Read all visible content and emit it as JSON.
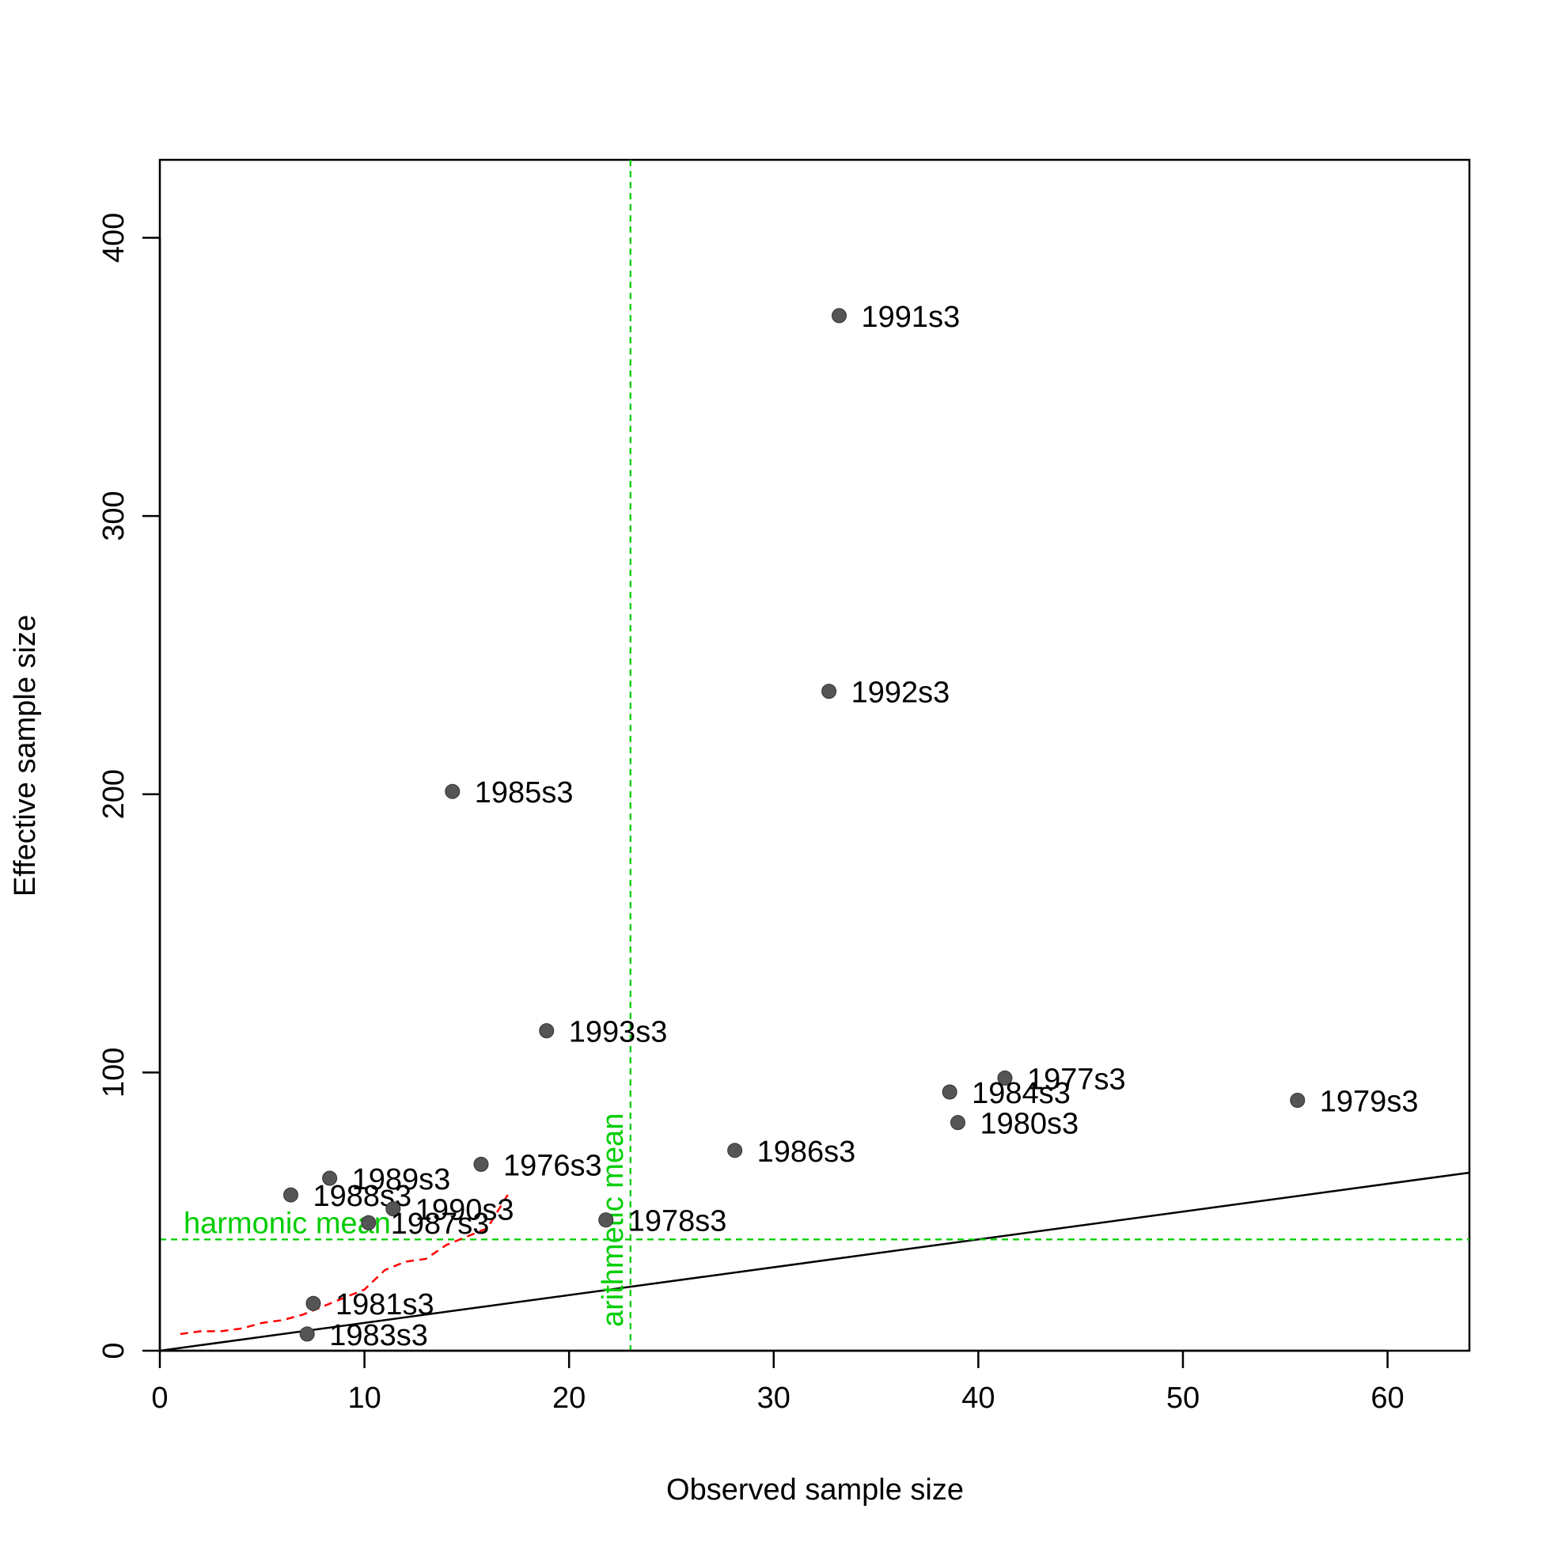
{
  "chart_data": {
    "type": "scatter",
    "xlabel": "Observed sample size",
    "ylabel": "Effective sample size",
    "xlim": [
      0,
      64
    ],
    "ylim": [
      0,
      428
    ],
    "x_ticks": [
      "0",
      "10",
      "20",
      "30",
      "40",
      "50",
      "60"
    ],
    "y_ticks": [
      "0",
      "100",
      "200",
      "300",
      "400"
    ],
    "points": [
      {
        "label": "1991s3",
        "x": 33.2,
        "y": 372
      },
      {
        "label": "1992s3",
        "x": 32.7,
        "y": 237
      },
      {
        "label": "1985s3",
        "x": 14.3,
        "y": 201
      },
      {
        "label": "1993s3",
        "x": 18.9,
        "y": 115
      },
      {
        "label": "1977s3",
        "x": 41.3,
        "y": 98
      },
      {
        "label": "1984s3",
        "x": 38.6,
        "y": 93
      },
      {
        "label": "1979s3",
        "x": 55.6,
        "y": 90
      },
      {
        "label": "1980s3",
        "x": 39.0,
        "y": 82
      },
      {
        "label": "1986s3",
        "x": 28.1,
        "y": 72
      },
      {
        "label": "1976s3",
        "x": 15.7,
        "y": 67
      },
      {
        "label": "1989s3",
        "x": 8.3,
        "y": 62
      },
      {
        "label": "1988s3",
        "x": 6.4,
        "y": 56
      },
      {
        "label": "1990s3",
        "x": 11.4,
        "y": 51
      },
      {
        "label": "1987s3",
        "x": 10.2,
        "y": 46
      },
      {
        "label": "1978s3",
        "x": 21.8,
        "y": 47
      },
      {
        "label": "1981s3",
        "x": 7.5,
        "y": 17
      },
      {
        "label": "1983s3",
        "x": 7.2,
        "y": 6
      }
    ],
    "identity_line": {
      "x": [
        0,
        64
      ],
      "y": [
        0,
        64
      ]
    },
    "harmonic_mean": {
      "label": "harmonic mean",
      "y": 40,
      "color": "#00cd00"
    },
    "arithmetic_mean": {
      "label": "arithmetic mean",
      "x": 23,
      "color": "#00cd00"
    },
    "smoother": {
      "color": "#ff0000",
      "x": [
        1,
        2,
        3,
        4,
        5,
        6,
        7,
        8,
        9,
        10,
        11,
        12,
        13,
        14,
        15,
        16,
        17
      ],
      "y": [
        6,
        7,
        7,
        8,
        10,
        11,
        13,
        16,
        19,
        22,
        29,
        32,
        33,
        38,
        41,
        44,
        56
      ]
    },
    "colors": {
      "points": "#555555",
      "identity": "#000000"
    },
    "grid": false,
    "legend": "none"
  }
}
